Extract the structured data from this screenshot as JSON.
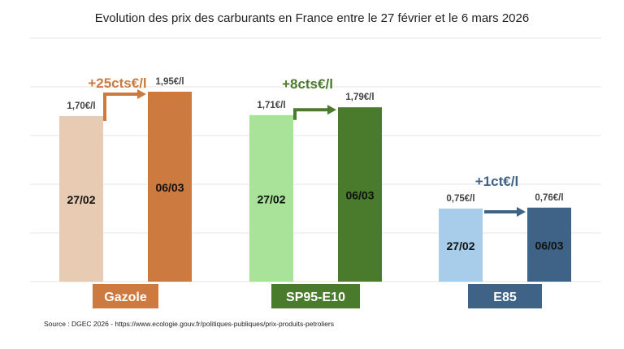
{
  "chart_data": {
    "type": "bar",
    "title": "Evolution des prix des carburants en France entre le 27 février et le 6 mars 2026",
    "source": "Source : DGEC 2026 - https://www.ecologie.gouv.fr/politiques-publiques/prix-produits-petroliers",
    "ylim": [
      0,
      2.5
    ],
    "grid": true,
    "unit": "€/l",
    "groups": [
      {
        "name": "Gazole",
        "change_label": "+25cts€/l",
        "arrow": "elbow",
        "colors": {
          "before": "#E8CBB3",
          "after": "#CC7A40",
          "label_bg": "#CC7A40",
          "change": "#CC7A40"
        },
        "bars": [
          {
            "date": "27/02",
            "value": 1.7,
            "value_label": "1,70€/l"
          },
          {
            "date": "06/03",
            "value": 1.95,
            "value_label": "1,95€/l"
          }
        ]
      },
      {
        "name": "SP95-E10",
        "change_label": "+8cts€/l",
        "arrow": "elbow",
        "colors": {
          "before": "#A9E39A",
          "after": "#4A7A2B",
          "label_bg": "#4A7A2B",
          "change": "#4A7A2B"
        },
        "bars": [
          {
            "date": "27/02",
            "value": 1.71,
            "value_label": "1,71€/l"
          },
          {
            "date": "06/03",
            "value": 1.79,
            "value_label": "1,79€/l"
          }
        ]
      },
      {
        "name": "E85",
        "change_label": "+1ct€/l",
        "arrow": "straight",
        "colors": {
          "before": "#A8CDEA",
          "after": "#3F6386",
          "label_bg": "#3F6386",
          "change": "#3F6386"
        },
        "bars": [
          {
            "date": "27/02",
            "value": 0.75,
            "value_label": "0,75€/l"
          },
          {
            "date": "06/03",
            "value": 0.76,
            "value_label": "0,76€/l"
          }
        ]
      }
    ]
  }
}
